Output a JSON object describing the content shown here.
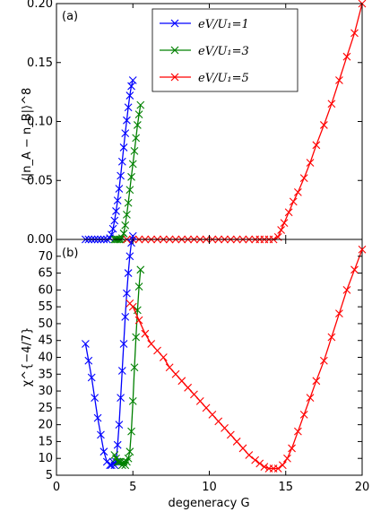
{
  "chart_data": [
    {
      "type": "line",
      "panel_label": "(a)",
      "ylabel": "⟨|n_A − n_B|⟩^8",
      "xlabel": "",
      "xlim": [
        0,
        20
      ],
      "ylim": [
        0,
        0.2
      ],
      "x_ticks": [
        0,
        5,
        10,
        15,
        20
      ],
      "y_ticks": [
        "0.00",
        "0.05",
        "0.10",
        "0.15",
        "0.20"
      ],
      "marker": "x",
      "legend": {
        "placement": "top-center"
      },
      "series": [
        {
          "name": "eV/U₁=1",
          "color": "#0000ff",
          "x": [
            1.9,
            2.1,
            2.3,
            2.5,
            2.7,
            2.9,
            3.1,
            3.3,
            3.5,
            3.6,
            3.7,
            3.8,
            3.9,
            4.0,
            4.1,
            4.2,
            4.3,
            4.4,
            4.5,
            4.6,
            4.7,
            4.8,
            4.9,
            5.0
          ],
          "y": [
            0,
            0,
            0,
            0,
            0,
            0,
            0,
            0,
            0.001,
            0.004,
            0.009,
            0.016,
            0.024,
            0.033,
            0.043,
            0.054,
            0.066,
            0.078,
            0.09,
            0.101,
            0.112,
            0.122,
            0.13,
            0.135
          ]
        },
        {
          "name": "eV/U₁=3",
          "color": "#008000",
          "x": [
            3.8,
            3.9,
            4.0,
            4.1,
            4.2,
            4.3,
            4.4,
            4.5,
            4.6,
            4.7,
            4.8,
            4.9,
            5.0,
            5.1,
            5.2,
            5.3,
            5.4,
            5.5
          ],
          "y": [
            0,
            0,
            0,
            0,
            0,
            0.001,
            0.005,
            0.012,
            0.021,
            0.031,
            0.042,
            0.053,
            0.064,
            0.075,
            0.086,
            0.097,
            0.106,
            0.114
          ]
        },
        {
          "name": "eV/U₁=5",
          "color": "#ff0000",
          "x": [
            4.6,
            5.0,
            5.4,
            5.8,
            6.2,
            6.6,
            7.0,
            7.4,
            7.8,
            8.2,
            8.6,
            9.0,
            9.4,
            9.8,
            10.2,
            10.6,
            11.0,
            11.4,
            11.8,
            12.2,
            12.6,
            13.0,
            13.3,
            13.6,
            13.9,
            14.2,
            14.5,
            14.7,
            14.9,
            15.2,
            15.5,
            15.8,
            16.2,
            16.6,
            17.0,
            17.5,
            18.0,
            18.5,
            19.0,
            19.5,
            20.0
          ],
          "y": [
            0,
            0,
            0,
            0,
            0,
            0,
            0,
            0,
            0,
            0,
            0,
            0,
            0,
            0,
            0,
            0,
            0,
            0,
            0,
            0,
            0,
            0,
            0,
            0,
            0,
            0,
            0.002,
            0.008,
            0.014,
            0.023,
            0.032,
            0.04,
            0.052,
            0.065,
            0.08,
            0.097,
            0.115,
            0.135,
            0.155,
            0.175,
            0.2
          ]
        }
      ]
    },
    {
      "type": "line",
      "panel_label": "(b)",
      "ylabel": "χ^{−4/7}",
      "xlabel": "degeneracy G",
      "xlim": [
        0,
        20
      ],
      "ylim": [
        5,
        75
      ],
      "x_ticks": [
        0,
        5,
        10,
        15,
        20
      ],
      "y_ticks": [
        "5",
        "10",
        "15",
        "20",
        "25",
        "30",
        "35",
        "40",
        "45",
        "50",
        "55",
        "60",
        "65",
        "70"
      ],
      "marker": "x",
      "series": [
        {
          "name": "eV/U₁=1",
          "color": "#0000ff",
          "x": [
            1.9,
            2.1,
            2.3,
            2.5,
            2.7,
            2.9,
            3.1,
            3.3,
            3.5,
            3.6,
            3.7,
            3.8,
            3.9,
            4.0,
            4.1,
            4.2,
            4.3,
            4.4,
            4.5,
            4.6,
            4.7,
            4.8,
            4.9,
            5.0
          ],
          "y": [
            44,
            39,
            34,
            28,
            22,
            17,
            12,
            9,
            8,
            8,
            9,
            8,
            9,
            14,
            20,
            28,
            36,
            44,
            52,
            59,
            65,
            70,
            74,
            76
          ]
        },
        {
          "name": "eV/U₁=3",
          "color": "#008000",
          "x": [
            3.8,
            3.9,
            4.0,
            4.1,
            4.2,
            4.3,
            4.4,
            4.5,
            4.6,
            4.7,
            4.8,
            4.9,
            5.0,
            5.1,
            5.2,
            5.3,
            5.4,
            5.5
          ],
          "y": [
            11,
            10,
            9,
            9,
            9,
            8,
            9,
            8,
            9,
            10,
            12,
            18,
            27,
            37,
            46,
            54,
            61,
            66
          ]
        },
        {
          "name": "eV/U₁=5",
          "color": "#ff0000",
          "x": [
            4.8,
            5.0,
            5.4,
            5.8,
            6.2,
            6.6,
            7.0,
            7.4,
            7.8,
            8.2,
            8.6,
            9.0,
            9.4,
            9.8,
            10.2,
            10.6,
            11.0,
            11.4,
            11.8,
            12.2,
            12.6,
            13.0,
            13.3,
            13.6,
            13.9,
            14.2,
            14.5,
            14.8,
            15.1,
            15.4,
            15.8,
            16.2,
            16.6,
            17.0,
            17.5,
            18.0,
            18.5,
            19.0,
            19.5,
            20.0
          ],
          "y": [
            56,
            55,
            51,
            47,
            44,
            42,
            40,
            37,
            35,
            33,
            31,
            29,
            27,
            25,
            23,
            21,
            19,
            17,
            15,
            13,
            11,
            9.5,
            8.5,
            7.5,
            7,
            7,
            7,
            8,
            10,
            13,
            18,
            23,
            28,
            33,
            39,
            46,
            53,
            60,
            66,
            72
          ]
        }
      ]
    }
  ]
}
